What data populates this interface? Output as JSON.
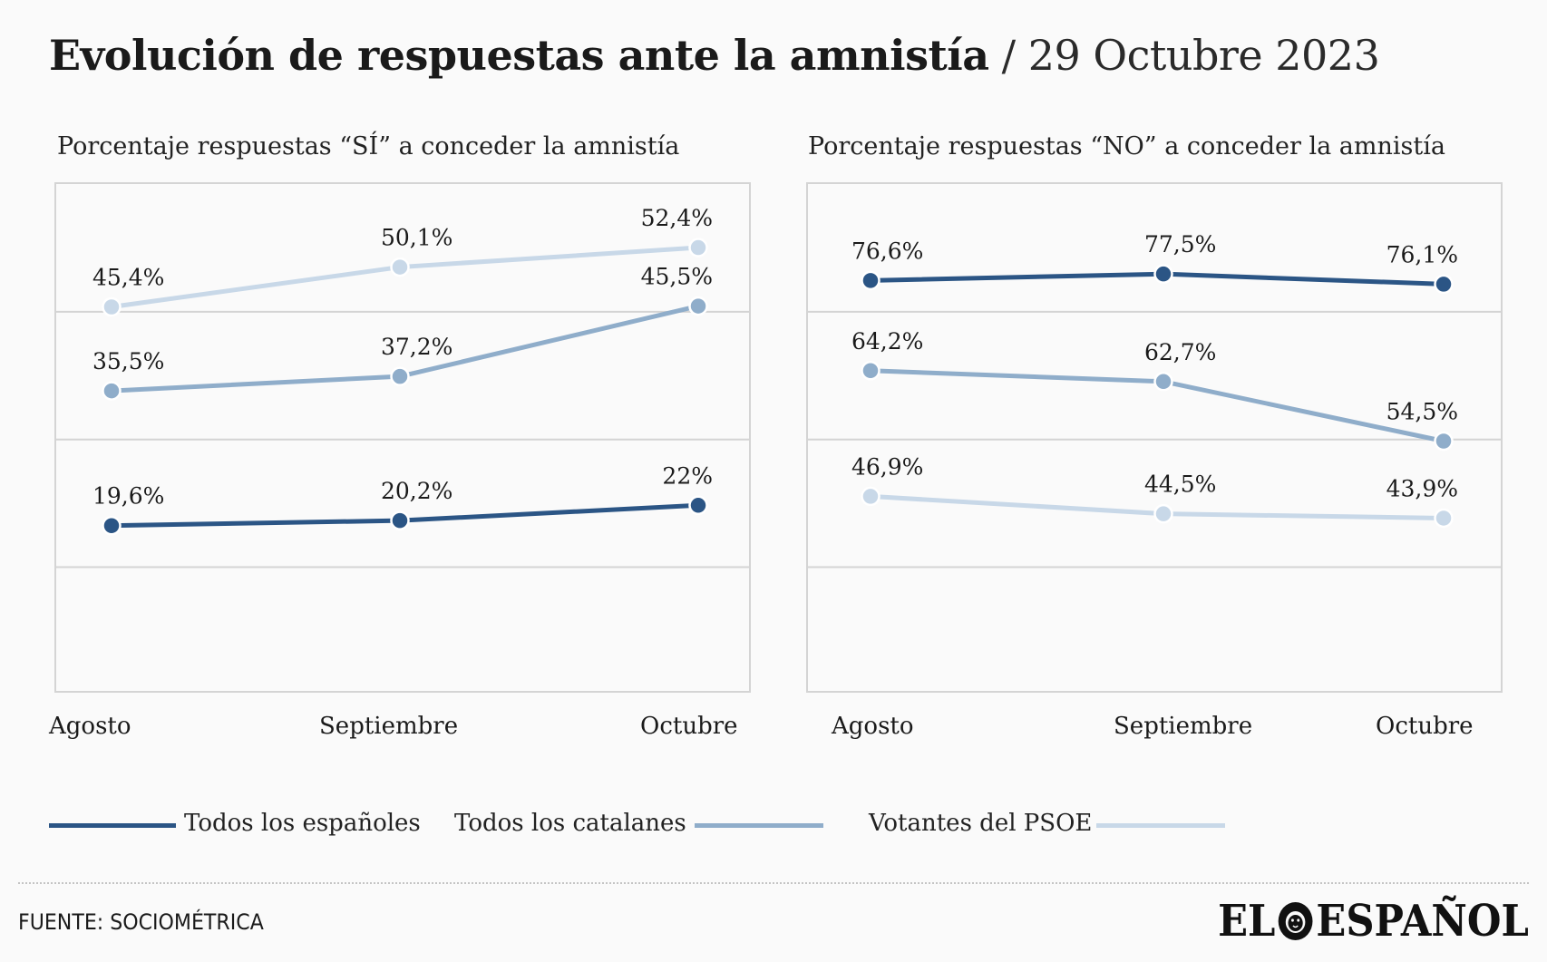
{
  "header": {
    "title_main": "Evolución de respuestas ante la amnistía",
    "title_date": " / 29 Octubre 2023"
  },
  "chart_data": [
    {
      "type": "line",
      "title": "Porcentaje respuestas “SÍ” a conceder la amnistía",
      "categories": [
        "Agosto",
        "Septiembre",
        "Octubre"
      ],
      "ylim": [
        0,
        60
      ],
      "grid": true,
      "series": [
        {
          "name": "Todos los españoles",
          "values": [
            19.6,
            20.2,
            22.0
          ],
          "labels": [
            "19,6%",
            "20,2%",
            "22%"
          ],
          "color": "#2b5585"
        },
        {
          "name": "Todos los catalanes",
          "values": [
            35.5,
            37.2,
            45.5
          ],
          "labels": [
            "35,5%",
            "37,2%",
            "45,5%"
          ],
          "color": "#8fadca"
        },
        {
          "name": "Votantes del PSOE",
          "values": [
            45.4,
            50.1,
            52.4
          ],
          "labels": [
            "45,4%",
            "50,1%",
            "52,4%"
          ],
          "color": "#c8d8e8"
        }
      ]
    },
    {
      "type": "line",
      "title": "Porcentaje respuestas “NO” a conceder la amnistía",
      "categories": [
        "Agosto",
        "Septiembre",
        "Octubre"
      ],
      "ylim": [
        20,
        90
      ],
      "grid": true,
      "series": [
        {
          "name": "Todos los españoles",
          "values": [
            76.6,
            77.5,
            76.1
          ],
          "labels": [
            "76,6%",
            "77,5%",
            "76,1%"
          ],
          "color": "#2b5585"
        },
        {
          "name": "Todos los catalanes",
          "values": [
            64.2,
            62.7,
            54.5
          ],
          "labels": [
            "64,2%",
            "62,7%",
            "54,5%"
          ],
          "color": "#8fadca"
        },
        {
          "name": "Votantes del PSOE",
          "values": [
            46.9,
            44.5,
            43.9
          ],
          "labels": [
            "46,9%",
            "44,5%",
            "43,9%"
          ],
          "color": "#c8d8e8"
        }
      ]
    }
  ],
  "legend": [
    {
      "label": "Todos los españoles",
      "color": "#2b5585"
    },
    {
      "label": "Todos los catalanes",
      "color": "#8fadca"
    },
    {
      "label": "Votantes del PSOE",
      "color": "#c8d8e8"
    }
  ],
  "footer": {
    "source": "FUENTE: SOCIOMÉTRICA",
    "logo_left": "EL",
    "logo_right": "ESPAÑOL",
    "logo_icon": "lion-head-icon"
  }
}
